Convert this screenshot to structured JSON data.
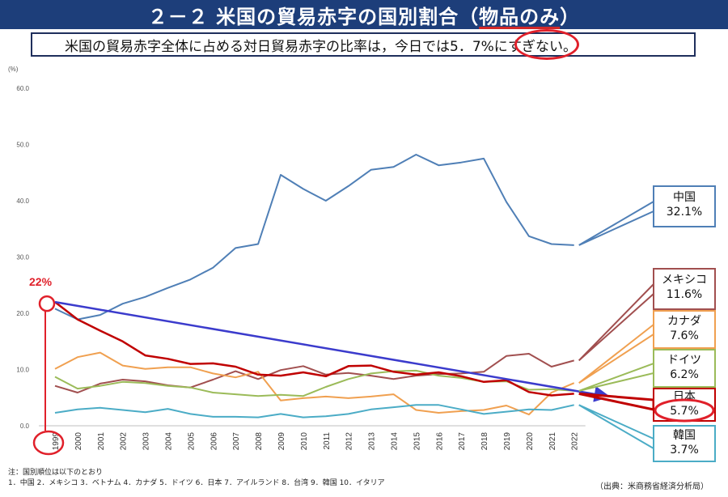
{
  "title": {
    "prefix": "２－２  米国の貿易赤字の国別割合（",
    "emph": "物品のみ",
    "suffix": "）"
  },
  "subtitle": "米国の貿易赤字全体に占める対日貿易赤字の比率は，今日では5．7%にすぎない。",
  "chart_data": {
    "type": "line",
    "unit_label": "(%)",
    "ylim": [
      0,
      60
    ],
    "yticks": [
      "0.0",
      "10.0",
      "20.0",
      "30.0",
      "40.0",
      "50.0",
      "60.0"
    ],
    "grid": false,
    "x": [
      "1999",
      "2000",
      "2001",
      "2002",
      "2003",
      "2004",
      "2005",
      "2006",
      "2007",
      "2008",
      "2009",
      "2010",
      "2011",
      "2012",
      "2013",
      "2014",
      "2015",
      "2016",
      "2017",
      "2018",
      "2019",
      "2020",
      "2021",
      "2022"
    ],
    "series": [
      {
        "name": "中国",
        "color": "#4f7fb6",
        "width": 2,
        "values": [
          20.8,
          18.9,
          19.7,
          21.7,
          22.9,
          24.5,
          26.0,
          28.1,
          31.6,
          32.3,
          44.6,
          42.1,
          40.0,
          42.6,
          45.5,
          46.0,
          48.2,
          46.3,
          46.8,
          47.5,
          39.8,
          33.7,
          32.3,
          32.1
        ]
      },
      {
        "name": "メキシコ",
        "color": "#a14f4f",
        "width": 2,
        "values": [
          7.1,
          5.9,
          7.5,
          8.2,
          7.9,
          7.2,
          6.8,
          8.2,
          9.7,
          8.3,
          9.9,
          10.6,
          9.1,
          9.4,
          8.9,
          8.3,
          8.9,
          9.2,
          9.3,
          9.6,
          12.4,
          12.8,
          10.5,
          11.6
        ]
      },
      {
        "name": "カナダ",
        "color": "#f0a050",
        "width": 2,
        "values": [
          10.1,
          12.2,
          13.0,
          10.7,
          10.1,
          10.4,
          10.4,
          9.3,
          8.6,
          9.6,
          4.5,
          4.9,
          5.2,
          4.9,
          5.2,
          5.6,
          2.8,
          2.3,
          2.6,
          2.8,
          3.6,
          2.0,
          5.9,
          7.6
        ]
      },
      {
        "name": "ドイツ",
        "color": "#9bbb59",
        "width": 2,
        "values": [
          8.7,
          6.6,
          7.1,
          7.8,
          7.6,
          7.1,
          6.8,
          5.9,
          5.6,
          5.3,
          5.5,
          5.3,
          6.9,
          8.3,
          9.3,
          9.7,
          9.8,
          8.9,
          8.5,
          7.8,
          7.9,
          6.4,
          6.5,
          6.2
        ]
      },
      {
        "name": "日本",
        "color": "#c00000",
        "width": 2.5,
        "values": [
          22.0,
          18.9,
          16.9,
          15.0,
          12.5,
          11.9,
          11.0,
          11.1,
          10.5,
          9.1,
          8.9,
          9.5,
          8.8,
          10.6,
          10.7,
          9.6,
          9.1,
          9.5,
          8.8,
          7.8,
          8.1,
          6.0,
          5.4,
          5.7
        ]
      },
      {
        "name": "韓国",
        "color": "#4bacc6",
        "width": 2,
        "values": [
          2.3,
          2.9,
          3.2,
          2.8,
          2.4,
          3.0,
          2.1,
          1.6,
          1.6,
          1.5,
          2.1,
          1.5,
          1.7,
          2.1,
          2.9,
          3.3,
          3.7,
          3.7,
          2.9,
          2.1,
          2.5,
          2.9,
          2.8,
          3.7
        ]
      }
    ],
    "callouts": [
      {
        "name": "中国",
        "value": "32.1%",
        "color": "#4f7fb6",
        "series": 0
      },
      {
        "name": "メキシコ",
        "value": "11.6%",
        "color": "#a14f4f",
        "series": 1
      },
      {
        "name": "カナダ",
        "value": "7.6%",
        "color": "#f0a050",
        "series": 2
      },
      {
        "name": "ドイツ",
        "value": "6.2%",
        "color": "#9bbb59",
        "series": 3
      },
      {
        "name": "日本",
        "value": "5.7%",
        "color": "#c00000",
        "series": 4
      },
      {
        "name": "韓国",
        "value": "3.7%",
        "color": "#4bacc6",
        "series": 5
      }
    ],
    "annotations": {
      "start_label": "22%",
      "start_color": "#e0202a",
      "trend_color": "#3b3bcc",
      "trend_from": {
        "x": "1999",
        "y": 22.0
      },
      "trend_to": {
        "x": "2022",
        "y": 5.7
      }
    }
  },
  "footnote": {
    "line1": "注：国別順位は以下のとおり",
    "line2": "1．中国  2．メキシコ  3．ベトナム  4．カナダ  5．ドイツ  6．日本  7．アイルランド  8．台湾  9．韓国  10．イタリア"
  },
  "source": "（出典：米商務省経済分析局）"
}
